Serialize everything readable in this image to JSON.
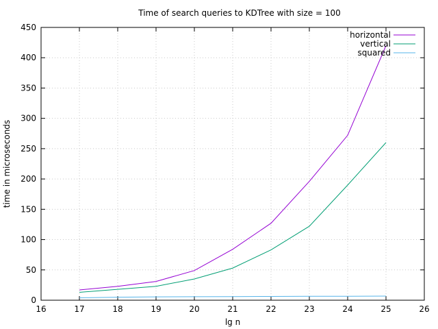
{
  "chart_data": {
    "type": "line",
    "title": "Time of search queries to KDTree with size = 100",
    "xlabel": "lg n",
    "ylabel": "time in microseconds",
    "xlim": [
      16,
      26
    ],
    "ylim": [
      0,
      450
    ],
    "xticks": [
      16,
      17,
      18,
      19,
      20,
      21,
      22,
      23,
      24,
      25,
      26
    ],
    "yticks": [
      0,
      50,
      100,
      150,
      200,
      250,
      300,
      350,
      400,
      450
    ],
    "grid": true,
    "legend_position": "top-right",
    "x": [
      17,
      18,
      19,
      20,
      21,
      22,
      23,
      24,
      25
    ],
    "series": [
      {
        "name": "horizontal",
        "color": "#9400d3",
        "values": [
          17,
          23,
          31,
          49,
          84,
          127,
          196,
          272,
          420
        ]
      },
      {
        "name": "vertical",
        "color": "#009e73",
        "values": [
          13,
          18,
          23,
          35,
          53,
          83,
          122,
          190,
          260
        ]
      },
      {
        "name": "squared",
        "color": "#56b4e9",
        "values": [
          4,
          5,
          5.5,
          5.8,
          6,
          6.2,
          6.4,
          6.6,
          6.8
        ]
      }
    ]
  }
}
